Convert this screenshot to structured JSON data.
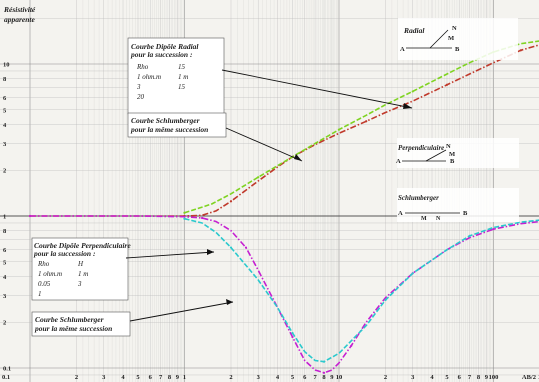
{
  "chart_data": {
    "type": "line",
    "ylabel": "Résistivité apparente",
    "xscale": "log",
    "yscale": "log",
    "grid": true,
    "x_ticks": [
      "0.1",
      "2",
      "3",
      "4",
      "5",
      "6",
      "7",
      "8",
      "9",
      "1",
      "2",
      "3",
      "4",
      "5",
      "6",
      "7",
      "8",
      "9",
      "10",
      "2",
      "3",
      "4",
      "5",
      "6",
      "7",
      "8",
      "9",
      "100",
      "2",
      "AB/2"
    ],
    "y_ticks_upper": [
      "10",
      "8",
      "6",
      "5",
      "4",
      "3",
      "2",
      "1"
    ],
    "y_ticks_lower": [
      "8",
      "6",
      "5",
      "4",
      "3",
      "2",
      "0.1"
    ],
    "series": [
      {
        "name": "Courbe Dipôle Radial pour la succession",
        "color": "#c0392b",
        "style": "dash-dot",
        "x": [
          0.1,
          0.2,
          0.5,
          1,
          1.3,
          1.6,
          2,
          3,
          4,
          5,
          7,
          10,
          15,
          20,
          30,
          50,
          70,
          100,
          150,
          200
        ],
        "y": [
          1,
          1,
          1,
          1,
          1.01,
          1.08,
          1.25,
          1.7,
          2.1,
          2.45,
          2.95,
          3.5,
          4.2,
          4.8,
          5.7,
          7.3,
          8.6,
          10.2,
          12.3,
          13.4
        ]
      },
      {
        "name": "Courbe Schlumberger pour la même succession",
        "color": "#7fd321",
        "style": "dash",
        "x": [
          1,
          1.5,
          2,
          3,
          5,
          7,
          10,
          15,
          20,
          30,
          50,
          70,
          100,
          150,
          200
        ],
        "y": [
          1.05,
          1.2,
          1.4,
          1.8,
          2.45,
          3.0,
          3.7,
          4.6,
          5.4,
          6.6,
          8.6,
          10.2,
          12.0,
          13.6,
          14.2
        ]
      },
      {
        "name": "Courbe Dipôle Perpendiculaire pour la succession",
        "color": "#c51fd1",
        "style": "dash-dot",
        "x": [
          0.1,
          0.5,
          1,
          1.3,
          1.6,
          2,
          2.5,
          3,
          4,
          5,
          6,
          7,
          8,
          9,
          10,
          12,
          15,
          20,
          30,
          50,
          70,
          100,
          150,
          200
        ],
        "y": [
          1,
          1,
          0.99,
          0.97,
          0.92,
          0.8,
          0.62,
          0.44,
          0.25,
          0.16,
          0.112,
          0.097,
          0.093,
          0.097,
          0.108,
          0.14,
          0.2,
          0.29,
          0.42,
          0.6,
          0.72,
          0.82,
          0.89,
          0.92
        ]
      },
      {
        "name": "Courbe Schlumberger pour la même succession",
        "color": "#2bc9cd",
        "style": "dash",
        "x": [
          1,
          1.3,
          1.6,
          2,
          3,
          4,
          5,
          6,
          7,
          8,
          10,
          15,
          20,
          30,
          50,
          70,
          100,
          150,
          200
        ],
        "y": [
          0.96,
          0.9,
          0.78,
          0.62,
          0.38,
          0.25,
          0.17,
          0.128,
          0.112,
          0.11,
          0.125,
          0.19,
          0.28,
          0.42,
          0.6,
          0.74,
          0.84,
          0.91,
          0.94
        ]
      }
    ],
    "annotations": {
      "radial_box": {
        "title_line1": "Courbe Dipôle Radial",
        "title_line2": "pour la succession :",
        "params": [
          "Rho",
          "15",
          "1 ohm.m",
          "1 m",
          "3",
          "15",
          "20"
        ]
      },
      "schlum_upper": {
        "line1": "Courbe Schlumberger",
        "line2": "pour la même succession"
      },
      "perp_box": {
        "title_line1": "Courbe Dipôle Perpendiculaire",
        "title_line2": "pour la succession :",
        "params": [
          "Rho",
          "H",
          "1 ohm.m",
          "1 m",
          "0.05",
          "3",
          "1"
        ]
      },
      "schlum_lower": {
        "line1": "Courbe Schlumberger",
        "line2": "pour la même succession"
      }
    },
    "legend_diagrams": {
      "radial": {
        "title": "Radial",
        "labels": [
          "A",
          "B",
          "N",
          "M"
        ]
      },
      "perpendicular": {
        "title": "Perpendiculaire",
        "labels": [
          "A",
          "B",
          "N",
          "M"
        ]
      },
      "schlumberger": {
        "title": "Schlumberger",
        "labels": [
          "A",
          "M",
          "N",
          "B"
        ]
      }
    }
  }
}
